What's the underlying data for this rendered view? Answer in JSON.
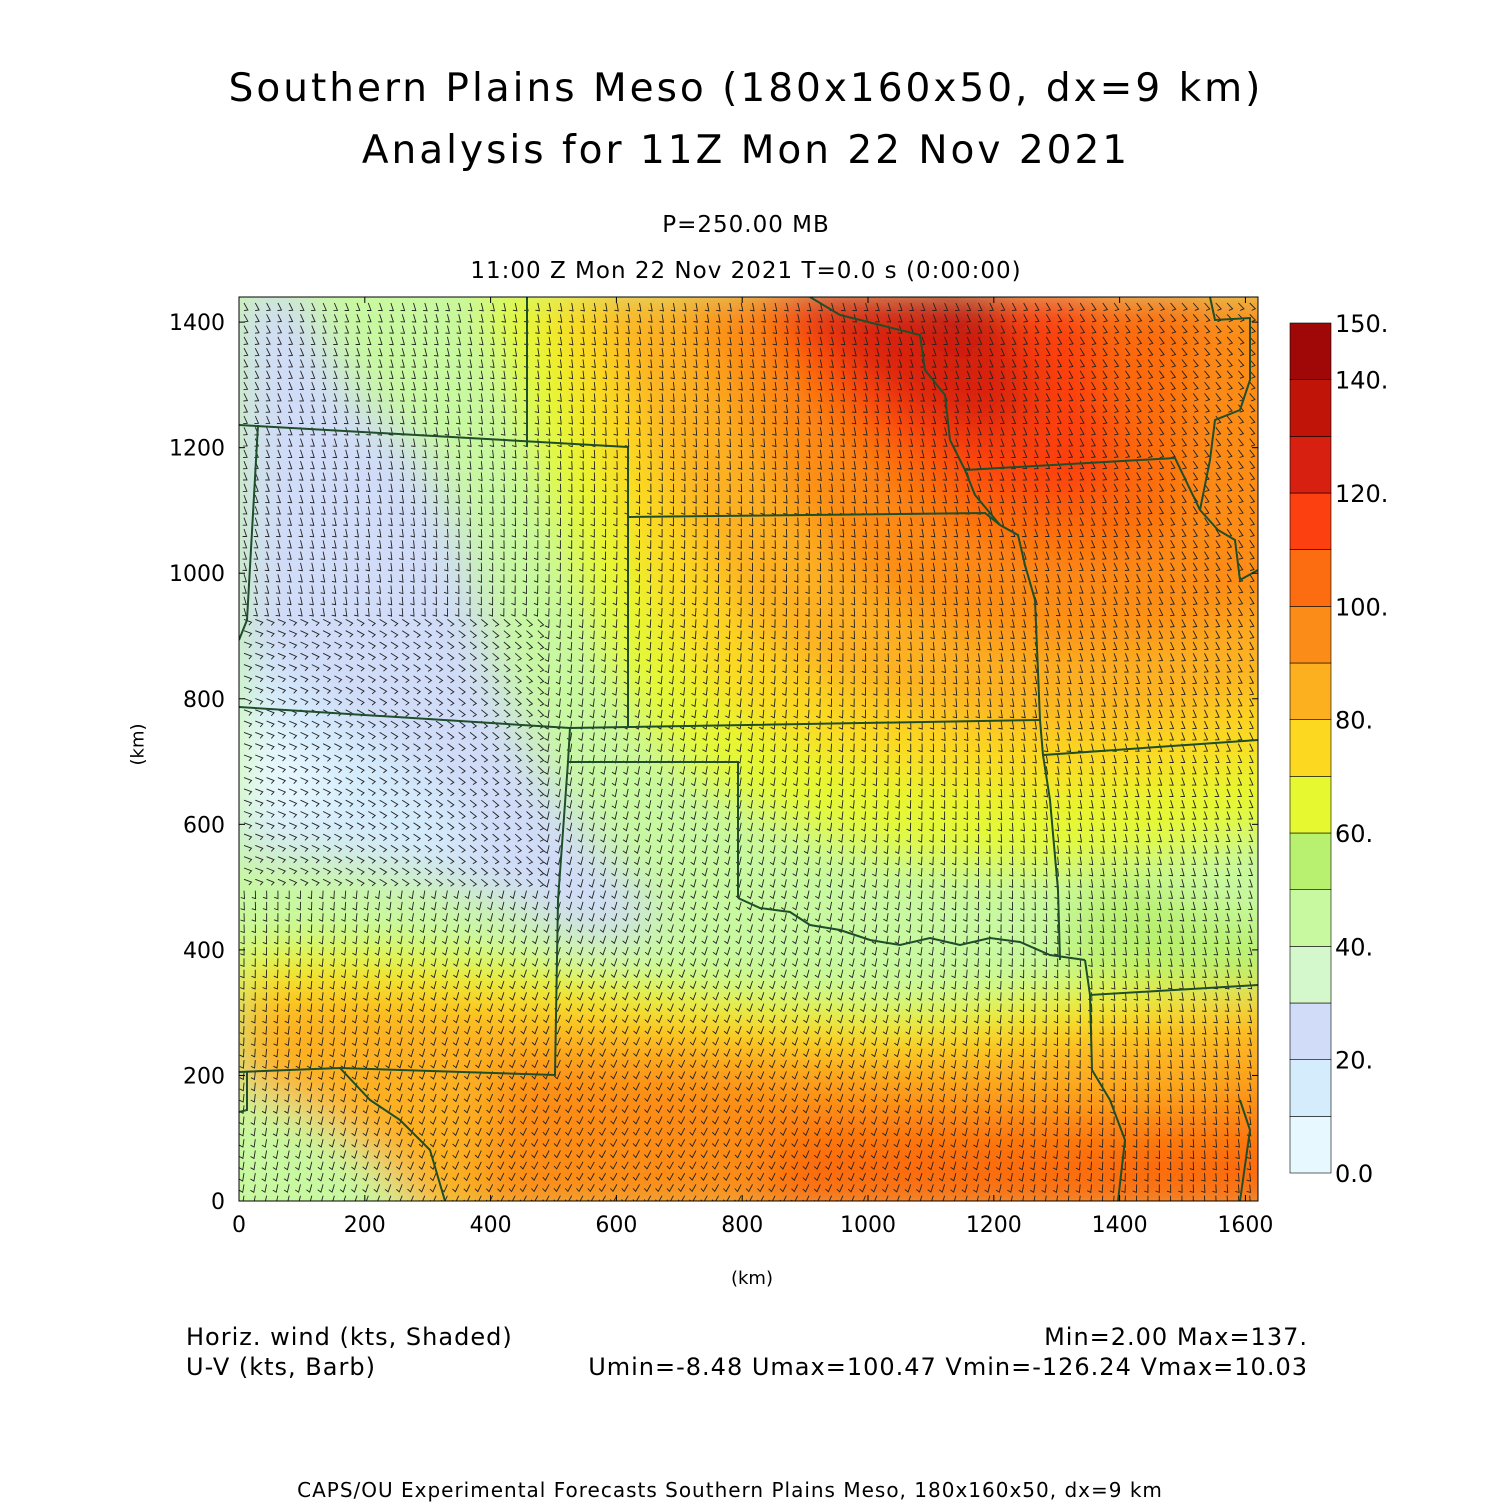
{
  "title": {
    "line1": "Southern Plains Meso (180x160x50, dx=9 km)",
    "line2": "Analysis for 11Z Mon 22 Nov 2021"
  },
  "subtitle": {
    "level": "P=250.00 MB",
    "time": "11:00 Z Mon 22 Nov 2021    T=0.0 s (0:00:00)"
  },
  "axes": {
    "x_label": "(km)",
    "y_label": "(km)",
    "x_ticks": [
      "0",
      "200",
      "400",
      "600",
      "800",
      "1000",
      "1200",
      "1400",
      "1600"
    ],
    "y_ticks": [
      "0",
      "200",
      "400",
      "600",
      "800",
      "1000",
      "1200",
      "1400"
    ],
    "x_range_km": [
      0,
      1620
    ],
    "y_range_km": [
      0,
      1440
    ]
  },
  "colorbar": {
    "labels": [
      "0.0",
      "20.",
      "40.",
      "60.",
      "80.",
      "100.",
      "120.",
      "140.",
      "150."
    ],
    "colors": [
      "#e8f8ff",
      "#d4ecfc",
      "#d0dcf8",
      "#d4f8cc",
      "#c8f8a0",
      "#b8f070",
      "#e6f830",
      "#fcd820",
      "#fcb020",
      "#fc8c18",
      "#fc6c10",
      "#fc4010",
      "#d82010",
      "#c01408",
      "#a00808"
    ]
  },
  "info": {
    "field_left": "Horiz. wind (kts, Shaded)",
    "vector_left": "U-V (kts, Barb)",
    "minmax": "Min=2.00 Max=137.",
    "uvstats": "Umin=-8.48 Umax=100.47 Vmin=-126.24 Vmax=10.03"
  },
  "footer": "CAPS/OU Experimental Forecasts  Southern Plains Meso, 180x160x50, dx=9 km",
  "colors": {
    "border": "#1e4e2a",
    "barb": "#222222",
    "frame": "#000000"
  }
}
